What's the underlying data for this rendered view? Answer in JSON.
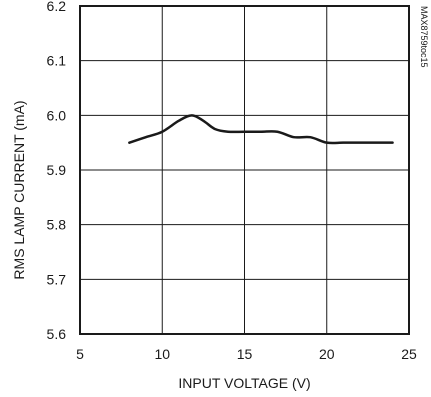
{
  "chart_data": {
    "type": "line",
    "title": "",
    "xlabel": "INPUT VOLTAGE (V)",
    "ylabel": "RMS LAMP CURRENT (mA)",
    "xlim": [
      5,
      25
    ],
    "ylim": [
      5.6,
      6.2
    ],
    "xticks": [
      "5",
      "10",
      "15",
      "20",
      "25"
    ],
    "yticks": [
      "5.6",
      "5.7",
      "5.8",
      "5.9",
      "6.0",
      "6.1",
      "6.2"
    ],
    "grid": true,
    "legend": "none",
    "series": [
      {
        "x": [
          8,
          9,
          10,
          11,
          11.8,
          12.5,
          13.2,
          14,
          15,
          16,
          17,
          18,
          19,
          20,
          21,
          22,
          23,
          24
        ],
        "y": [
          5.95,
          5.96,
          5.97,
          5.99,
          6.0,
          5.99,
          5.975,
          5.97,
          5.97,
          5.97,
          5.97,
          5.96,
          5.96,
          5.95,
          5.95,
          5.95,
          5.95,
          5.95
        ],
        "color": "#1a1a1a"
      }
    ],
    "side_note": "MAX8759toc15"
  }
}
